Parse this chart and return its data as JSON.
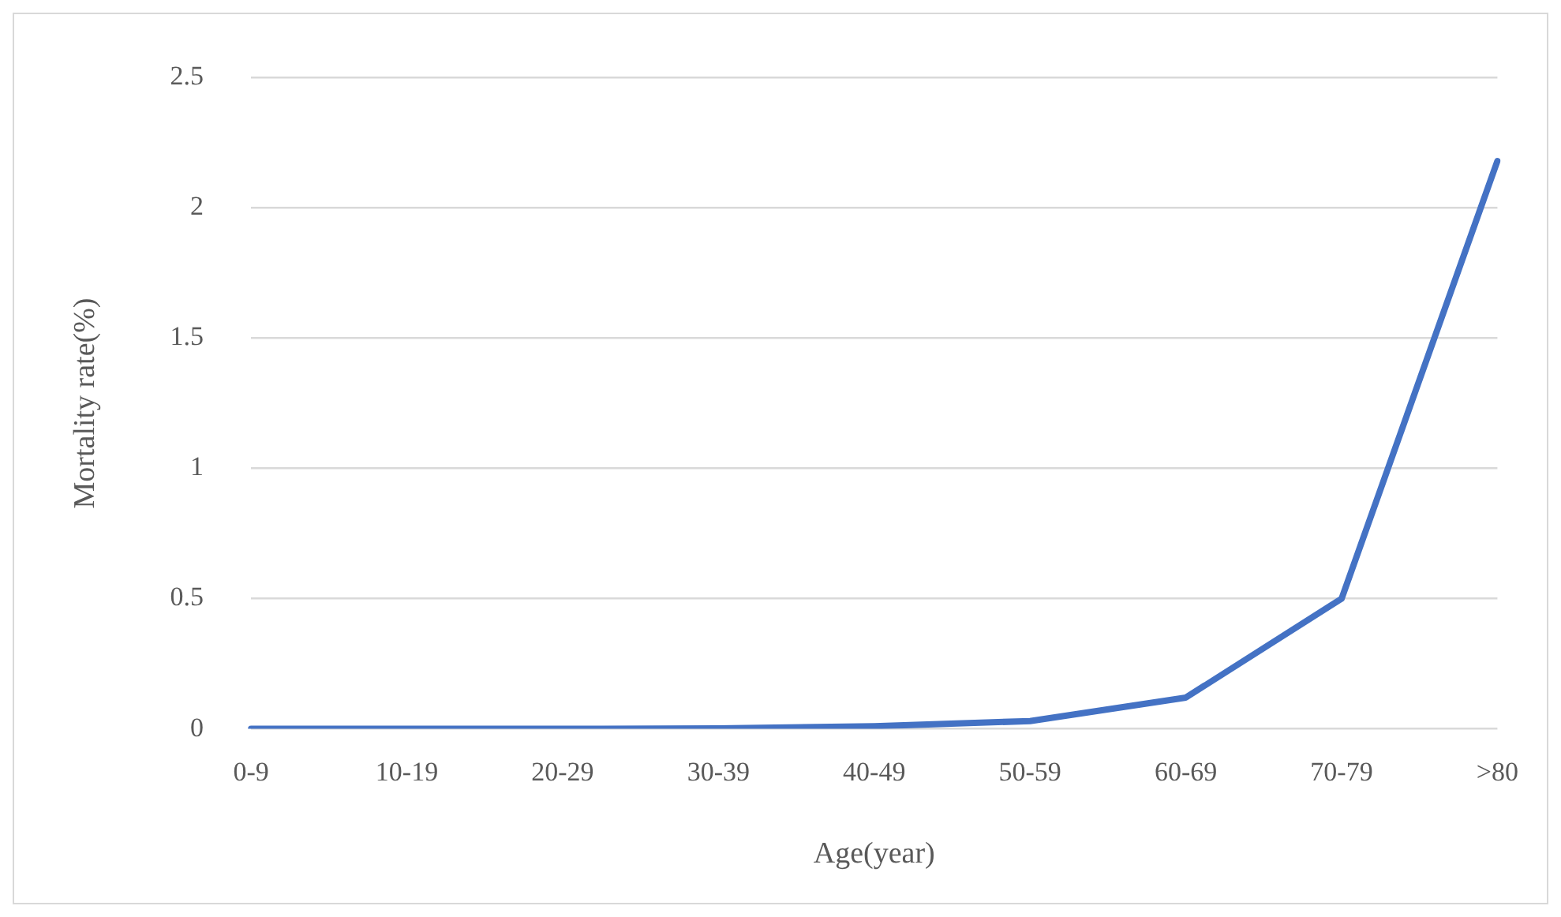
{
  "chart_data": {
    "type": "line",
    "xlabel": "Age(year)",
    "ylabel": "Mortality rate(%)",
    "categories": [
      "0-9",
      "10-19",
      "20-29",
      "30-39",
      "40-49",
      "50-59",
      "60-69",
      "70-79",
      ">80"
    ],
    "series": [
      {
        "color": "#4472c4",
        "values": [
          0,
          0,
          0,
          0.002,
          0.01,
          0.03,
          0.12,
          0.5,
          2.18
        ]
      }
    ],
    "ylim": [
      0,
      2.5
    ],
    "yticks": [
      0,
      0.5,
      1,
      1.5,
      2,
      2.5
    ],
    "grid": "y",
    "legend": false,
    "marker": "none",
    "line_style": "solid"
  }
}
